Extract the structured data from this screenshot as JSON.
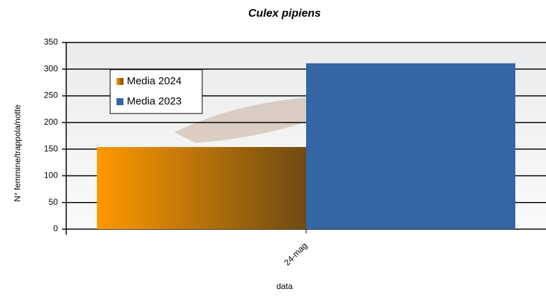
{
  "chart_data": {
    "type": "bar",
    "title": "Culex pipiens",
    "x_label": "data",
    "y_label": "N° femmine/trappola/notte",
    "categories": [
      "24-mag"
    ],
    "series": [
      {
        "name": "Media 2024",
        "color": "#ff9900",
        "values": [
          154
        ]
      },
      {
        "name": "Media 2023",
        "color": "#3465a4",
        "values": [
          311
        ]
      }
    ],
    "ylim": [
      0,
      350
    ],
    "yticks": [
      0,
      50,
      100,
      150,
      200,
      250,
      300,
      350
    ],
    "grid": true,
    "legend": "upper left"
  }
}
